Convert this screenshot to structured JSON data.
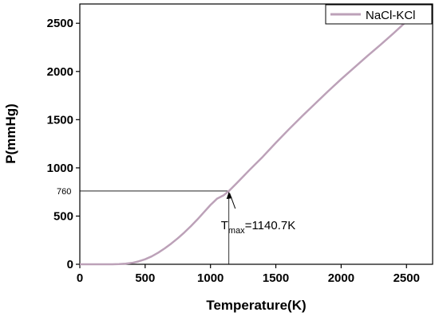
{
  "chart_data": {
    "type": "line",
    "xlabel": "Temperature(K)",
    "ylabel": "P(mmHg)",
    "xlim": [
      0,
      2700
    ],
    "ylim": [
      0,
      2700
    ],
    "xticks": [
      0,
      500,
      1000,
      1500,
      2000,
      2500
    ],
    "yticks": [
      0,
      500,
      1000,
      1500,
      2000,
      2500
    ],
    "grid": false,
    "legend_position": "top-right",
    "series": [
      {
        "name": "NaCl-KCl",
        "color": "#bca1b8",
        "x": [
          0,
          250,
          300,
          350,
          400,
          450,
          500,
          550,
          600,
          650,
          700,
          750,
          800,
          850,
          900,
          950,
          1000,
          1050,
          1100,
          1140.7,
          1200,
          1300,
          1400,
          1500,
          1600,
          1700,
          1800,
          1900,
          2000,
          2100,
          2200,
          2300,
          2400,
          2500
        ],
        "y": [
          0,
          0,
          2,
          6,
          14,
          30,
          52,
          82,
          120,
          165,
          215,
          270,
          330,
          395,
          465,
          540,
          615,
          680,
          715,
          760,
          840,
          980,
          1115,
          1260,
          1400,
          1535,
          1665,
          1795,
          1920,
          2040,
          2160,
          2275,
          2395,
          2520
        ]
      }
    ],
    "annotation": {
      "reference_y_label": "760",
      "reference_y": 760,
      "point_x": 1140.7,
      "point_y": 760,
      "text_base": "T",
      "text_sub": "max",
      "text_value": "=1140.7K"
    }
  }
}
